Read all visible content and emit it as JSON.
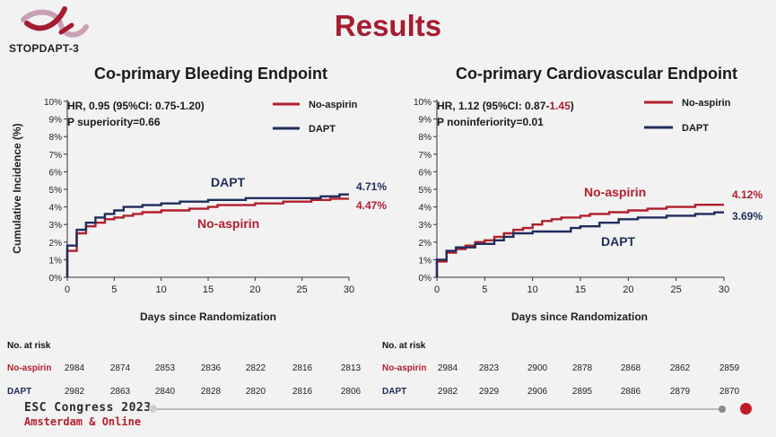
{
  "slide": {
    "title": "Results",
    "logo_text": "STOPDAPT-3",
    "footer_line1": "ESC Congress 2023",
    "footer_line2": "Amsterdam & Online"
  },
  "colors": {
    "no_aspirin": "#b11e2d",
    "dapt": "#1f2d5c",
    "title": "#a51c30"
  },
  "chart_data": [
    {
      "type": "line",
      "title": "Co-primary Bleeding Endpoint",
      "xlabel": "Days since Randomization",
      "ylabel": "Cumulative Incidence (%)",
      "xlim": [
        0,
        30
      ],
      "ylim": [
        0,
        10
      ],
      "x_ticks": [
        "0",
        "5",
        "10",
        "15",
        "20",
        "25",
        "30"
      ],
      "y_ticks": [
        "0%",
        "1%",
        "2%",
        "3%",
        "4%",
        "5%",
        "6%",
        "7%",
        "8%",
        "9%",
        "10%"
      ],
      "stats_line1": "HR, 0.95 (95%CI: 0.75-1.20)",
      "stats_line2": "P superiority=0.66",
      "legend": [
        "No-aspirin",
        "DAPT"
      ],
      "series": [
        {
          "name": "No-aspirin",
          "color": "#b11e2d",
          "end_label": "4.47%",
          "inline_label": "No-aspirin",
          "points": [
            [
              0,
              0
            ],
            [
              0,
              1.5
            ],
            [
              1,
              1.5
            ],
            [
              1,
              2.5
            ],
            [
              2,
              2.5
            ],
            [
              2,
              2.9
            ],
            [
              3,
              2.9
            ],
            [
              3,
              3.1
            ],
            [
              4,
              3.1
            ],
            [
              4,
              3.3
            ],
            [
              5,
              3.3
            ],
            [
              5,
              3.4
            ],
            [
              6,
              3.4
            ],
            [
              6,
              3.5
            ],
            [
              7,
              3.5
            ],
            [
              7,
              3.6
            ],
            [
              8,
              3.6
            ],
            [
              8,
              3.7
            ],
            [
              10,
              3.7
            ],
            [
              10,
              3.8
            ],
            [
              13,
              3.8
            ],
            [
              13,
              3.9
            ],
            [
              15,
              3.9
            ],
            [
              15,
              4.0
            ],
            [
              16,
              4.0
            ],
            [
              16,
              4.1
            ],
            [
              20,
              4.1
            ],
            [
              20,
              4.2
            ],
            [
              23,
              4.2
            ],
            [
              23,
              4.3
            ],
            [
              26,
              4.3
            ],
            [
              26,
              4.4
            ],
            [
              28,
              4.4
            ],
            [
              28,
              4.47
            ],
            [
              30,
              4.47
            ]
          ]
        },
        {
          "name": "DAPT",
          "color": "#1f2d5c",
          "end_label": "4.71%",
          "inline_label": "DAPT",
          "points": [
            [
              0,
              0
            ],
            [
              0,
              1.8
            ],
            [
              1,
              1.8
            ],
            [
              1,
              2.7
            ],
            [
              2,
              2.7
            ],
            [
              2,
              3.1
            ],
            [
              3,
              3.1
            ],
            [
              3,
              3.4
            ],
            [
              4,
              3.4
            ],
            [
              4,
              3.6
            ],
            [
              5,
              3.6
            ],
            [
              5,
              3.8
            ],
            [
              6,
              3.8
            ],
            [
              6,
              4.0
            ],
            [
              8,
              4.0
            ],
            [
              8,
              4.1
            ],
            [
              10,
              4.1
            ],
            [
              10,
              4.2
            ],
            [
              12,
              4.2
            ],
            [
              12,
              4.3
            ],
            [
              15,
              4.3
            ],
            [
              15,
              4.4
            ],
            [
              19,
              4.4
            ],
            [
              19,
              4.5
            ],
            [
              27,
              4.5
            ],
            [
              27,
              4.6
            ],
            [
              29,
              4.6
            ],
            [
              29,
              4.71
            ],
            [
              30,
              4.71
            ]
          ]
        }
      ],
      "at_risk": {
        "header": "No. at risk",
        "rows": [
          {
            "label": "No-aspirin",
            "values": [
              "2984",
              "2874",
              "2853",
              "2836",
              "2822",
              "2816",
              "2813"
            ]
          },
          {
            "label": "DAPT",
            "values": [
              "2982",
              "2863",
              "2840",
              "2828",
              "2820",
              "2816",
              "2806"
            ]
          }
        ]
      }
    },
    {
      "type": "line",
      "title": "Co-primary Cardiovascular Endpoint",
      "xlabel": "Days since Randomization",
      "ylabel": "",
      "xlim": [
        0,
        30
      ],
      "ylim": [
        0,
        10
      ],
      "x_ticks": [
        "0",
        "5",
        "10",
        "15",
        "20",
        "25",
        "30"
      ],
      "y_ticks": [
        "0%",
        "1%",
        "2%",
        "3%",
        "4%",
        "5%",
        "6%",
        "7%",
        "8%",
        "9%",
        "10%"
      ],
      "stats_line1_pre": "HR, 1.12 (95%CI: 0.87-",
      "stats_line1_hi": "1.45",
      "stats_line1_post": ")",
      "stats_line2": "P noninferiority=0.01",
      "legend": [
        "No-aspirin",
        "DAPT"
      ],
      "series": [
        {
          "name": "No-aspirin",
          "color": "#b11e2d",
          "end_label": "4.12%",
          "inline_label": "No-aspirin",
          "points": [
            [
              0,
              0
            ],
            [
              0,
              0.9
            ],
            [
              1,
              0.9
            ],
            [
              1,
              1.4
            ],
            [
              2,
              1.4
            ],
            [
              2,
              1.6
            ],
            [
              3,
              1.6
            ],
            [
              3,
              1.8
            ],
            [
              4,
              1.8
            ],
            [
              4,
              2.0
            ],
            [
              5,
              2.0
            ],
            [
              5,
              2.1
            ],
            [
              6,
              2.1
            ],
            [
              6,
              2.3
            ],
            [
              7,
              2.3
            ],
            [
              7,
              2.5
            ],
            [
              8,
              2.5
            ],
            [
              8,
              2.7
            ],
            [
              9,
              2.7
            ],
            [
              9,
              2.8
            ],
            [
              10,
              2.8
            ],
            [
              10,
              3.0
            ],
            [
              11,
              3.0
            ],
            [
              11,
              3.2
            ],
            [
              12,
              3.2
            ],
            [
              12,
              3.3
            ],
            [
              13,
              3.3
            ],
            [
              13,
              3.4
            ],
            [
              15,
              3.4
            ],
            [
              15,
              3.5
            ],
            [
              16,
              3.5
            ],
            [
              16,
              3.6
            ],
            [
              18,
              3.6
            ],
            [
              18,
              3.7
            ],
            [
              20,
              3.7
            ],
            [
              20,
              3.8
            ],
            [
              22,
              3.8
            ],
            [
              22,
              3.9
            ],
            [
              24,
              3.9
            ],
            [
              24,
              4.0
            ],
            [
              27,
              4.0
            ],
            [
              27,
              4.12
            ],
            [
              30,
              4.12
            ]
          ]
        },
        {
          "name": "DAPT",
          "color": "#1f2d5c",
          "end_label": "3.69%",
          "inline_label": "DAPT",
          "points": [
            [
              0,
              0
            ],
            [
              0,
              1.0
            ],
            [
              1,
              1.0
            ],
            [
              1,
              1.5
            ],
            [
              2,
              1.5
            ],
            [
              2,
              1.7
            ],
            [
              4,
              1.7
            ],
            [
              4,
              1.9
            ],
            [
              6,
              1.9
            ],
            [
              6,
              2.1
            ],
            [
              7,
              2.1
            ],
            [
              7,
              2.3
            ],
            [
              8,
              2.3
            ],
            [
              8,
              2.5
            ],
            [
              10,
              2.5
            ],
            [
              10,
              2.6
            ],
            [
              14,
              2.6
            ],
            [
              14,
              2.8
            ],
            [
              15,
              2.8
            ],
            [
              15,
              2.9
            ],
            [
              17,
              2.9
            ],
            [
              17,
              3.1
            ],
            [
              19,
              3.1
            ],
            [
              19,
              3.3
            ],
            [
              21,
              3.3
            ],
            [
              21,
              3.4
            ],
            [
              24,
              3.4
            ],
            [
              24,
              3.5
            ],
            [
              27,
              3.5
            ],
            [
              27,
              3.6
            ],
            [
              29,
              3.6
            ],
            [
              29,
              3.69
            ],
            [
              30,
              3.69
            ]
          ]
        }
      ],
      "at_risk": {
        "header": "No. at risk",
        "rows": [
          {
            "label": "No-aspirin",
            "values": [
              "2984",
              "2823",
              "2900",
              "2878",
              "2868",
              "2862",
              "2859"
            ]
          },
          {
            "label": "DAPT",
            "values": [
              "2982",
              "2929",
              "2906",
              "2895",
              "2886",
              "2879",
              "2870"
            ]
          }
        ]
      }
    }
  ]
}
